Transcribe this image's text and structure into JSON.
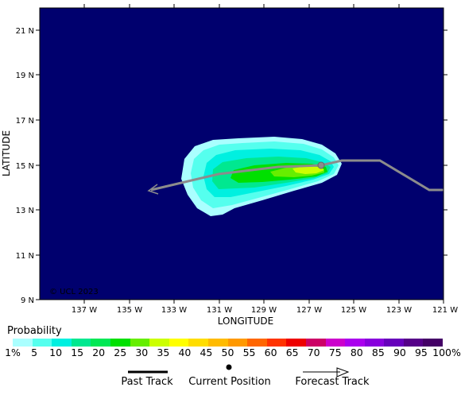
{
  "map": {
    "xaxis_title": "LONGITUDE",
    "yaxis_title": "LATITUDE",
    "x_ticks": [
      "137 W",
      "135 W",
      "133 W",
      "131 W",
      "129 W",
      "127 W",
      "125 W",
      "123 W",
      "121 W"
    ],
    "y_ticks": [
      "21 N",
      "19 N",
      "17 N",
      "15 N",
      "13 N",
      "11 N",
      "9 N"
    ],
    "copyright": "© UCL 2023",
    "ocean_color": "#00006e",
    "track_color": "#8c8c8c"
  },
  "legend": {
    "probability_title": "Probability",
    "colorbar_labels": [
      "1%",
      "5",
      "10",
      "15",
      "20",
      "25",
      "30",
      "35",
      "40",
      "45",
      "50",
      "55",
      "60",
      "65",
      "70",
      "75",
      "80",
      "85",
      "90",
      "95",
      "100%"
    ],
    "colorbar_colors": [
      "#aaffff",
      "#55ffee",
      "#00f0e0",
      "#00e890",
      "#00e855",
      "#00e000",
      "#66ee00",
      "#ccff00",
      "#ffff00",
      "#ffdd00",
      "#ffbb00",
      "#ff9900",
      "#ff6600",
      "#ff3300",
      "#ee0000",
      "#cc0066",
      "#cc00cc",
      "#aa00ee",
      "#8800dd",
      "#6600bb",
      "#550088",
      "#440066"
    ],
    "past_track": "Past Track",
    "current_position": "Current Position",
    "forecast_track": "Forecast Track"
  }
}
